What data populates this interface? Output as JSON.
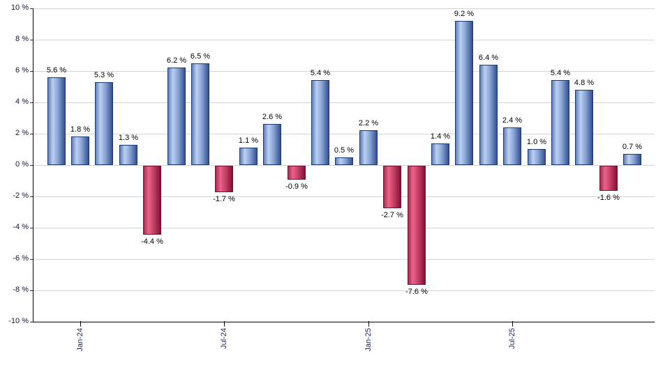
{
  "chart_data": {
    "type": "bar",
    "title": "",
    "xlabel": "",
    "ylabel": "",
    "ylim": [
      -10,
      10
    ],
    "ytick_step": 2,
    "grid": "horizontal",
    "legend": "none",
    "y_ticks": [
      {
        "value": 10,
        "label": "10 %"
      },
      {
        "value": 8,
        "label": "8 %"
      },
      {
        "value": 6,
        "label": "6 %"
      },
      {
        "value": 4,
        "label": "4 %"
      },
      {
        "value": 2,
        "label": "2 %"
      },
      {
        "value": 0,
        "label": "0 %"
      },
      {
        "value": -2,
        "label": "-2 %"
      },
      {
        "value": -4,
        "label": "-4 %"
      },
      {
        "value": -6,
        "label": "-6 %"
      },
      {
        "value": -8,
        "label": "-8 %"
      },
      {
        "value": -10,
        "label": "-10 %"
      }
    ],
    "x_ticks": [
      {
        "bar_index": 1,
        "label": "Jan-24"
      },
      {
        "bar_index": 7,
        "label": "Jul-24"
      },
      {
        "bar_index": 13,
        "label": "Jan-25"
      },
      {
        "bar_index": 19,
        "label": "Jul-25"
      }
    ],
    "values": [
      5.6,
      1.8,
      5.3,
      1.3,
      -4.4,
      6.2,
      6.5,
      -1.7,
      1.1,
      2.6,
      -0.9,
      5.4,
      0.5,
      2.2,
      -2.7,
      -7.6,
      1.4,
      9.2,
      6.4,
      2.4,
      1.0,
      5.4,
      4.8,
      -1.6,
      0.7
    ],
    "bar_labels": [
      "5.6 %",
      "1.8 %",
      "5.3 %",
      "1.3 %",
      "-4.4 %",
      "6.2 %",
      "6.5 %",
      "-1.7 %",
      "1.1 %",
      "2.6 %",
      "-0.9 %",
      "5.4 %",
      "0.5 %",
      "2.2 %",
      "-2.7 %",
      "-7.6 %",
      "1.4 %",
      "9.2 %",
      "6.4 %",
      "2.4 %",
      "1.0 %",
      "5.4 %",
      "4.8 %",
      "-1.6 %",
      "0.7 %"
    ],
    "colors": {
      "background": "#ffffff",
      "gridline": "#d4d4d4",
      "axis": "#000000",
      "tick": "#333333",
      "value_label": "#000000",
      "y_tick_label": "#14143c",
      "x_tick_label": "#232b52",
      "positive_bar_gradient": [
        "#5f7fb7",
        "#bcd0f2",
        "#89a5d6",
        "#33508f"
      ],
      "positive_bar_border": "#1d3a6e",
      "negative_bar_gradient": [
        "#a62c52",
        "#ec6389",
        "#c94067",
        "#7e1436"
      ],
      "negative_bar_border": "#701334"
    }
  }
}
